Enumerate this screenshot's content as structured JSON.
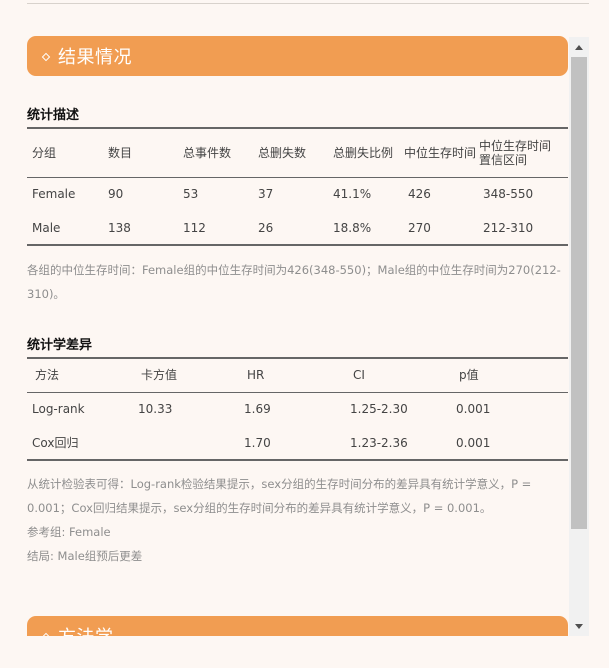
{
  "results_section": {
    "title": "结果情况"
  },
  "descriptive": {
    "title": "统计描述",
    "headers": [
      "分组",
      "数目",
      "总事件数",
      "总删失数",
      "总删失比例",
      "中位生存时间",
      "中位生存时间置信区间"
    ],
    "rows": [
      [
        "Female",
        "90",
        "53",
        "37",
        "41.1%",
        "426",
        "348-550"
      ],
      [
        "Male",
        "138",
        "112",
        "26",
        "18.8%",
        "270",
        "212-310"
      ]
    ],
    "note": "各组的中位生存时间：Female组的中位生存时间为426(348-550)；Male组的中位生存时间为270(212-310)。"
  },
  "difference": {
    "title": "统计学差异",
    "headers": [
      "方法",
      "卡方值",
      "HR",
      "CI",
      "p值"
    ],
    "rows": [
      [
        "Log-rank",
        "10.33",
        "1.69",
        "1.25-2.30",
        "0.001"
      ],
      [
        "Cox回归",
        "",
        "1.70",
        "1.23-2.36",
        "0.001"
      ]
    ],
    "note": "从统计检验表可得：Log-rank检验结果提示，sex分组的生存时间分布的差异具有统计学意义，P = 0.001；Cox回归结果提示，sex分组的生存时间分布的差异具有统计学意义，P = 0.001。",
    "reference": "参考组: Female",
    "conclusion": "结局: Male组预后更差"
  },
  "methods_section": {
    "title": "方法学"
  },
  "colors": {
    "accent": "#f19d52",
    "background": "#fdf7f3"
  }
}
